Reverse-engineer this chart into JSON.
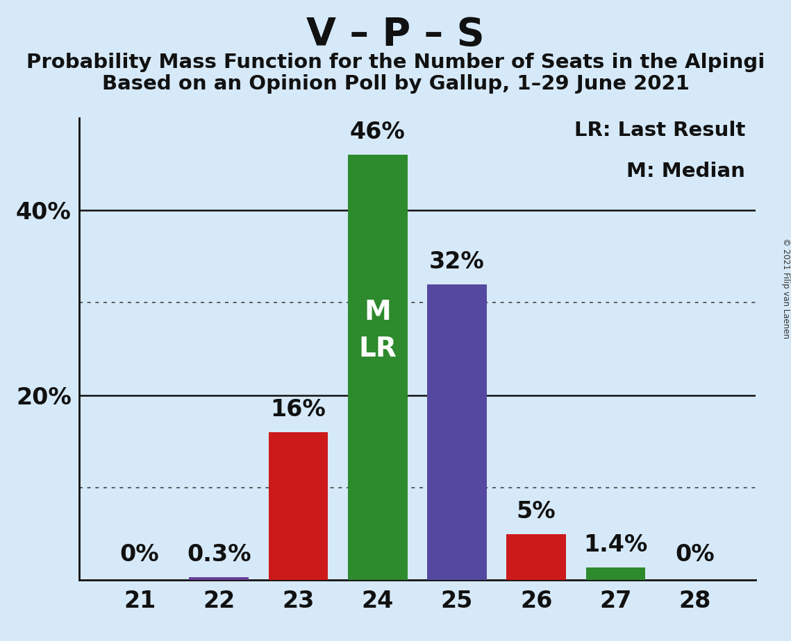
{
  "title": "V – P – S",
  "subtitle1": "Probability Mass Function for the Number of Seats in the Alpingi",
  "subtitle2": "Based on an Opinion Poll by Gallup, 1–29 June 2021",
  "copyright": "© 2021 Filip van Laenen",
  "legend_lr": "LR: Last Result",
  "legend_m": "M: Median",
  "categories": [
    21,
    22,
    23,
    24,
    25,
    26,
    27,
    28
  ],
  "values": [
    0.0,
    0.3,
    16.0,
    46.0,
    32.0,
    5.0,
    1.4,
    0.0
  ],
  "labels": [
    "0%",
    "0.3%",
    "16%",
    "46%",
    "32%",
    "5%",
    "1.4%",
    "0%"
  ],
  "bar_colors": [
    "#6a3d9a",
    "#6a3d9a",
    "#cc1a1a",
    "#2d8a2d",
    "#5548a0",
    "#cc1a1a",
    "#2d8a2d",
    "#5548a0"
  ],
  "background_color": "#d6e9f8",
  "ylim": [
    0,
    52
  ],
  "solid_yticks": [
    20,
    40
  ],
  "dotted_yticks": [
    10,
    30
  ],
  "bar_width": 0.75,
  "median_bar": 24,
  "lr_bar": 24,
  "bar_label_fontsize": 24,
  "title_fontsize": 40,
  "subtitle_fontsize": 21,
  "tick_fontsize": 24,
  "legend_fontsize": 21,
  "inner_label_fontsize": 28
}
